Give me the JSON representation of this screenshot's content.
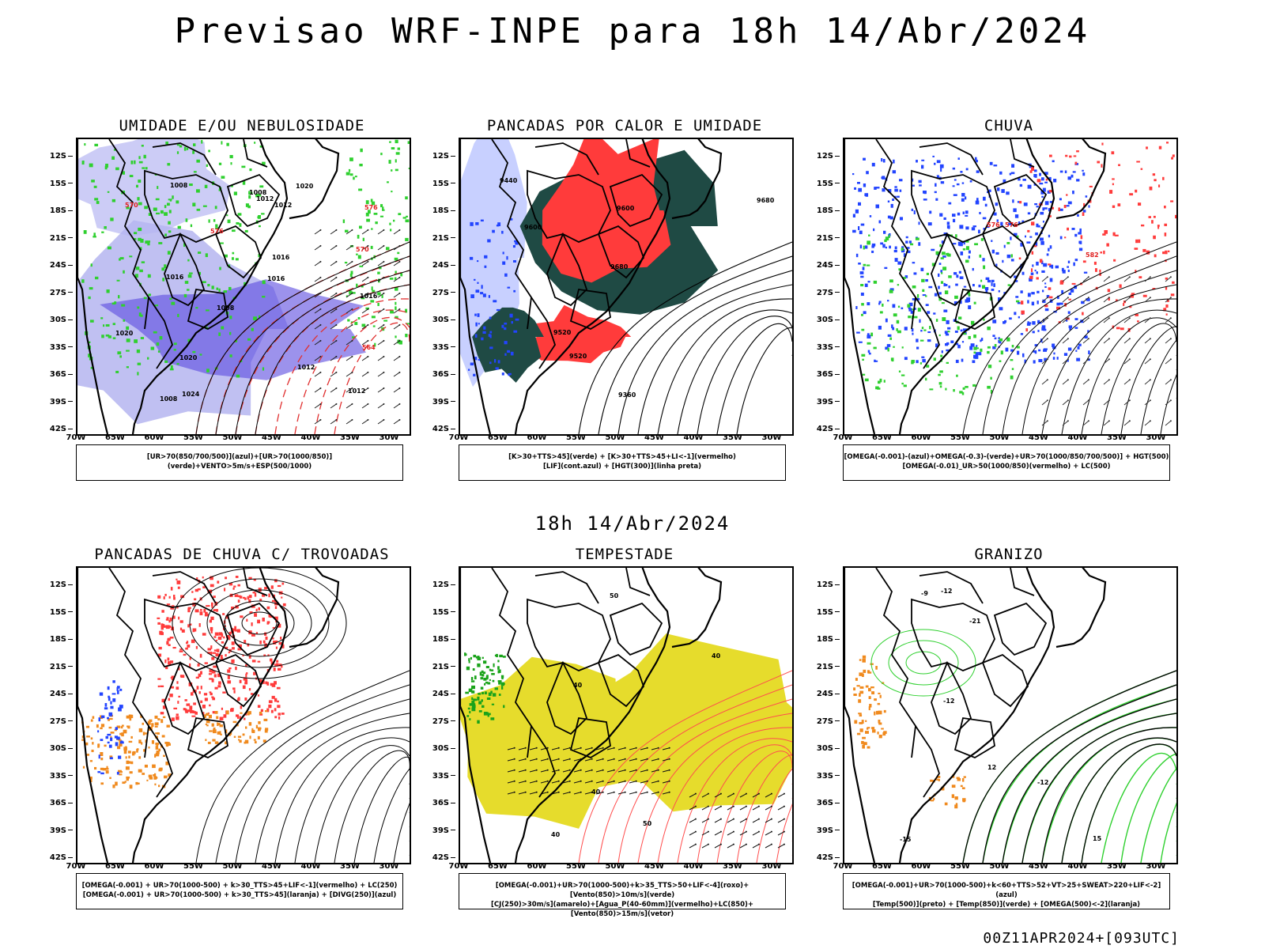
{
  "title": "Previsao WRF-INPE  para 18h 14/Abr/2024",
  "mid_date": "18h 14/Abr/2024",
  "footer": "00Z11APR2024+[093UTC]",
  "lat_labels": [
    "12S",
    "15S",
    "18S",
    "21S",
    "24S",
    "27S",
    "30S",
    "33S",
    "36S",
    "39S",
    "42S"
  ],
  "lon_labels": [
    "70W",
    "65W",
    "60W",
    "55W",
    "50W",
    "45W",
    "40W",
    "35W",
    "30W"
  ],
  "colors": {
    "green": "#2fd02f",
    "red": "#ff3b3b",
    "blue": "#2244ff",
    "purple": "#8c8ce8",
    "darkteal": "#1f4a44",
    "yellow": "#e6dc2c",
    "orange": "#f08a1e"
  },
  "panels": [
    {
      "id": "umidade",
      "title": "UMIDADE E/OU NEBULOSIDADE",
      "legend": [
        "[UR>70(850/700/500)](azul)+[UR>70(1000/850)](verde)+VENTO>5m/s+ESP(500/1000)"
      ],
      "labels": [
        "1008",
        "1008",
        "1008",
        "1012",
        "1008",
        "1012",
        "1012",
        "1016",
        "1020",
        "1024",
        "1016",
        "1020",
        "1016",
        "1012",
        "1016",
        "1020",
        "576",
        "576",
        "570",
        "564",
        "570"
      ]
    },
    {
      "id": "pancadas_calor",
      "title": "PANCADAS POR CALOR E UMIDADE",
      "legend": [
        "[K>30+TTS>45](verde) + [K>30+TTS>45+LI<-1](vermelho)",
        "[LIF](cont.azul) + [HGT(300)](linha preta)"
      ],
      "labels": [
        "9680",
        "9680",
        "9600",
        "9520",
        "9440",
        "9360",
        "9600",
        "9520"
      ]
    },
    {
      "id": "chuva",
      "title": "CHUVA",
      "legend": [
        "[OMEGA(-0.001)-(azul)+OMEGA(-0.3)-(verde)+UR>70(1000/850/700/500)] + HGT(500)",
        "[OMEGA(-0.01)_UR>50(1000/850)(vermelho) + LC(500)"
      ],
      "labels": [
        "576",
        "582",
        "576"
      ]
    },
    {
      "id": "trovoadas",
      "title": "PANCADAS DE CHUVA C/ TROVOADAS",
      "legend": [
        "[OMEGA(-0.001) + UR>70(1000-500) + k>30_TTS>45+LIF<-1](vermelho) + LC(250)",
        "[OMEGA(-0.001) + UR>70(1000-500) + k>30_TTS>45](laranja) + [DIVG(250)](azul)"
      ],
      "labels": []
    },
    {
      "id": "tempestade",
      "title": "TEMPESTADE",
      "legend": [
        "[OMEGA(-0.001)+UR>70(1000-500)+k>35_TTS>50+LIF<-4](roxo)+[Vento(850)>10m/s](verde)",
        "[CJ(250)>30m/s](amarelo)+[Agua_P(40-60mm)](vermelho)+LC(850)+[Vento(850)>15m/s](vetor)"
      ],
      "labels": [
        "50",
        "40",
        "40",
        "40",
        "50",
        "40"
      ]
    },
    {
      "id": "granizo",
      "title": "GRANIZO",
      "legend": [
        "[OMEGA(-0.001)+UR>70(1000-500)+k<60+TTS>52+VT>25+SWEAT>220+LIF<-2](azul)",
        "[Temp(500)](preto) + [Temp(850)](verde) + [OMEGA(500)<-2](laranja)"
      ],
      "labels": [
        "-12",
        "-9",
        "-12",
        "-21",
        "-12",
        "15",
        "12",
        "-15"
      ]
    }
  ]
}
